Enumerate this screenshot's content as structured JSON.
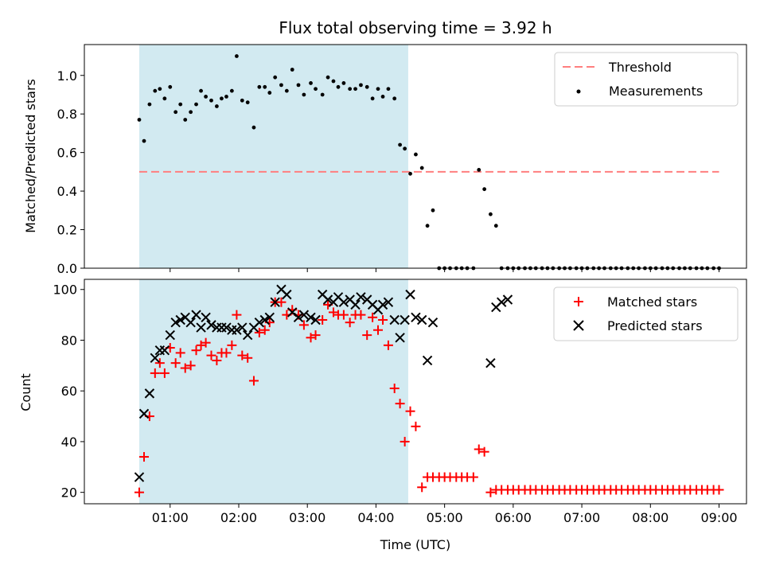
{
  "chart_data": {
    "type": "scatter",
    "title": "Flux total observing time = 3.92 h",
    "x_axis": {
      "label": "Time (UTC)",
      "unit": "hours since 00:00 UTC",
      "xlim": [
        -0.25,
        9.4
      ],
      "ticks": [
        1,
        2,
        3,
        4,
        5,
        6,
        7,
        8,
        9
      ],
      "tick_labels": [
        "01:00",
        "02:00",
        "03:00",
        "04:00",
        "05:00",
        "06:00",
        "07:00",
        "08:00",
        "09:00"
      ]
    },
    "shaded_interval": {
      "x0": 0.55,
      "x1": 4.47,
      "color": "#add8e6"
    },
    "panels": [
      {
        "ylabel": "Matched/Predicted stars",
        "ylim": [
          0,
          1.16
        ],
        "y_ticks": [
          0,
          0.2,
          0.4,
          0.6,
          0.8,
          1.0
        ],
        "y_tick_labels": [
          "0.0",
          "0.2",
          "0.4",
          "0.6",
          "0.8",
          "1.0"
        ],
        "legend": {
          "position": "upper right"
        },
        "series": [
          {
            "name": "Threshold",
            "kind": "dashed-line",
            "color": "#ff7f7f",
            "x": [
              0.55,
              9.0
            ],
            "y": [
              0.5,
              0.5
            ]
          },
          {
            "name": "Measurements",
            "kind": "dot",
            "color": "#000000",
            "x": [
              0.55,
              0.62,
              0.7,
              0.78,
              0.85,
              0.92,
              1.0,
              1.08,
              1.15,
              1.22,
              1.3,
              1.38,
              1.45,
              1.52,
              1.6,
              1.68,
              1.75,
              1.82,
              1.9,
              1.97,
              2.05,
              2.13,
              2.22,
              2.3,
              2.38,
              2.45,
              2.53,
              2.62,
              2.7,
              2.78,
              2.87,
              2.95,
              3.05,
              3.12,
              3.22,
              3.3,
              3.38,
              3.45,
              3.53,
              3.62,
              3.7,
              3.78,
              3.87,
              3.95,
              4.03,
              4.1,
              4.18,
              4.27,
              4.35,
              4.42,
              4.5,
              4.58,
              4.67,
              4.75,
              4.83,
              4.92,
              5.0,
              5.08,
              5.17,
              5.25,
              5.33,
              5.42,
              5.5,
              5.58,
              5.67,
              5.75,
              5.83,
              5.92,
              6.0,
              6.08,
              6.17,
              6.25,
              6.33,
              6.42,
              6.5,
              6.58,
              6.67,
              6.75,
              6.83,
              6.92,
              7.0,
              7.08,
              7.17,
              7.25,
              7.33,
              7.42,
              7.5,
              7.58,
              7.67,
              7.75,
              7.83,
              7.92,
              8.0,
              8.08,
              8.17,
              8.25,
              8.33,
              8.42,
              8.5,
              8.58,
              8.67,
              8.75,
              8.83,
              8.92,
              9.0
            ],
            "y": [
              0.77,
              0.66,
              0.85,
              0.92,
              0.93,
              0.88,
              0.94,
              0.81,
              0.85,
              0.77,
              0.81,
              0.85,
              0.92,
              0.89,
              0.87,
              0.84,
              0.88,
              0.89,
              0.92,
              1.1,
              0.87,
              0.86,
              0.73,
              0.94,
              0.94,
              0.91,
              0.99,
              0.95,
              0.92,
              1.03,
              0.95,
              0.9,
              0.96,
              0.93,
              0.9,
              0.99,
              0.97,
              0.94,
              0.96,
              0.93,
              0.93,
              0.95,
              0.94,
              0.88,
              0.93,
              0.89,
              0.93,
              0.88,
              0.64,
              0.62,
              0.49,
              0.59,
              0.52,
              0.22,
              0.3,
              0,
              0,
              0,
              0,
              0,
              0,
              0,
              0.51,
              0.41,
              0.28,
              0.22,
              0,
              0,
              0,
              0,
              0,
              0,
              0,
              0,
              0,
              0,
              0,
              0,
              0,
              0,
              0,
              0,
              0,
              0,
              0,
              0,
              0,
              0,
              0,
              0,
              0,
              0,
              0,
              0,
              0,
              0,
              0,
              0,
              0,
              0,
              0,
              0,
              0,
              0,
              0
            ]
          }
        ]
      },
      {
        "ylabel": "Count",
        "ylim": [
          15.5,
          104
        ],
        "y_ticks": [
          20,
          40,
          60,
          80,
          100
        ],
        "y_tick_labels": [
          "20",
          "40",
          "60",
          "80",
          "100"
        ],
        "legend": {
          "position": "upper right"
        },
        "series": [
          {
            "name": "Matched stars",
            "kind": "plus",
            "color": "#ff0000",
            "x": [
              0.55,
              0.62,
              0.7,
              0.78,
              0.85,
              0.92,
              1.0,
              1.08,
              1.15,
              1.22,
              1.3,
              1.38,
              1.45,
              1.52,
              1.6,
              1.68,
              1.75,
              1.82,
              1.9,
              1.97,
              2.05,
              2.13,
              2.22,
              2.3,
              2.38,
              2.45,
              2.53,
              2.62,
              2.7,
              2.78,
              2.87,
              2.95,
              3.05,
              3.12,
              3.22,
              3.3,
              3.38,
              3.45,
              3.53,
              3.62,
              3.7,
              3.78,
              3.87,
              3.95,
              4.03,
              4.1,
              4.18,
              4.27,
              4.35,
              4.42,
              4.5,
              4.58,
              4.67,
              4.75,
              4.83,
              4.92,
              5.0,
              5.08,
              5.17,
              5.25,
              5.33,
              5.42,
              5.5,
              5.58,
              5.67,
              5.75,
              5.83,
              5.92,
              6.0,
              6.08,
              6.17,
              6.25,
              6.33,
              6.42,
              6.5,
              6.58,
              6.67,
              6.75,
              6.83,
              6.92,
              7.0,
              7.08,
              7.17,
              7.25,
              7.33,
              7.42,
              7.5,
              7.58,
              7.67,
              7.75,
              7.83,
              7.92,
              8.0,
              8.08,
              8.17,
              8.25,
              8.33,
              8.42,
              8.5,
              8.58,
              8.67,
              8.75,
              8.83,
              8.92,
              9.0
            ],
            "y": [
              20,
              34,
              50,
              67,
              71,
              67,
              77,
              71,
              75,
              69,
              70,
              76,
              78,
              79,
              74,
              72,
              75,
              75,
              78,
              90,
              74,
              73,
              64,
              83,
              84,
              87,
              95,
              95,
              90,
              92,
              90,
              86,
              81,
              82,
              88,
              94,
              91,
              90,
              90,
              87,
              90,
              90,
              82,
              89,
              84,
              88,
              78,
              61,
              55,
              40,
              52,
              46,
              22,
              26,
              26,
              26,
              26,
              26,
              26,
              26,
              26,
              26,
              37,
              36,
              20,
              21,
              21,
              21,
              21,
              21,
              21,
              21,
              21,
              21,
              21,
              21,
              21,
              21,
              21,
              21,
              21,
              21,
              21,
              21,
              21,
              21,
              21,
              21,
              21,
              21,
              21,
              21,
              21,
              21,
              21,
              21,
              21,
              21,
              21,
              21,
              21,
              21,
              21,
              21,
              21
            ]
          },
          {
            "name": "Predicted stars",
            "kind": "cross",
            "color": "#000000",
            "x": [
              0.55,
              0.62,
              0.7,
              0.78,
              0.85,
              0.92,
              1.0,
              1.08,
              1.15,
              1.22,
              1.3,
              1.38,
              1.45,
              1.52,
              1.6,
              1.68,
              1.75,
              1.82,
              1.9,
              1.97,
              2.05,
              2.13,
              2.22,
              2.3,
              2.38,
              2.45,
              2.53,
              2.62,
              2.7,
              2.78,
              2.87,
              2.95,
              3.05,
              3.12,
              3.22,
              3.3,
              3.38,
              3.45,
              3.53,
              3.62,
              3.7,
              3.78,
              3.87,
              3.95,
              4.03,
              4.1,
              4.18,
              4.27,
              4.35,
              4.42,
              4.5,
              4.58,
              4.67,
              4.75,
              4.83,
              5.67,
              5.75,
              5.83,
              5.92
            ],
            "y": [
              26,
              51,
              59,
              73,
              76,
              76,
              82,
              87,
              88,
              89,
              87,
              90,
              85,
              89,
              86,
              85,
              85,
              85,
              84,
              84,
              85,
              82,
              85,
              87,
              88,
              89,
              95,
              100,
              98,
              91,
              89,
              90,
              89,
              88,
              98,
              96,
              95,
              97,
              95,
              96,
              94,
              97,
              96,
              94,
              92,
              94,
              95,
              88,
              81,
              88,
              98,
              89,
              88,
              72,
              87,
              71,
              93,
              95,
              96
            ]
          }
        ]
      }
    ]
  }
}
